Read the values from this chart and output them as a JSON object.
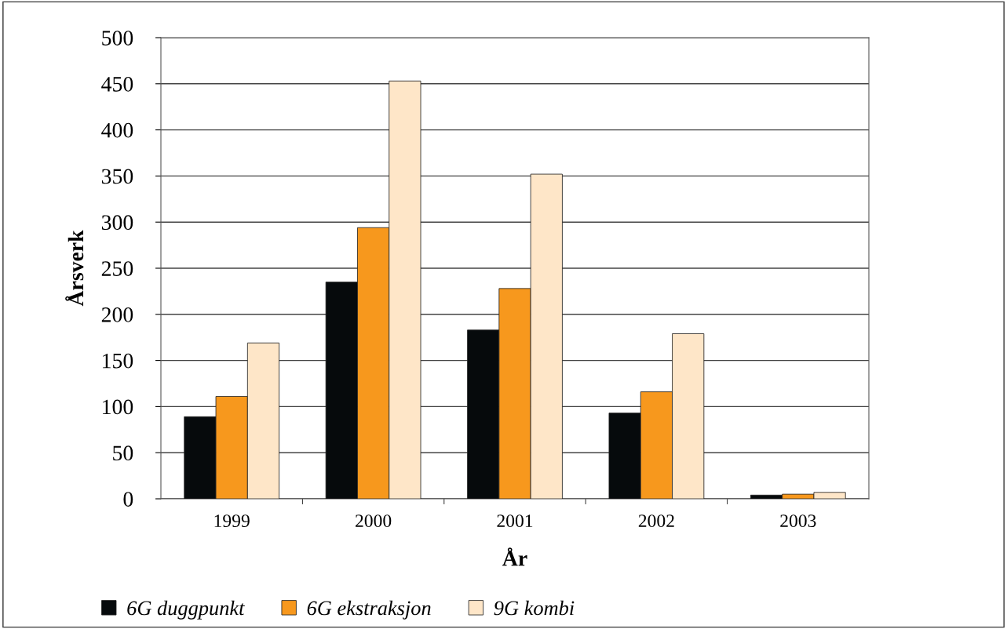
{
  "chart_data": {
    "type": "bar",
    "xlabel": "År",
    "ylabel": "Årsverk",
    "categories": [
      "1999",
      "2000",
      "2001",
      "2002",
      "2003"
    ],
    "series": [
      {
        "name": "6G duggpunkt",
        "color": "#060a0c",
        "values": [
          89,
          235,
          183,
          93,
          4
        ]
      },
      {
        "name": "6G ekstraksjon",
        "color": "#f7981d",
        "values": [
          111,
          294,
          228,
          116,
          5
        ]
      },
      {
        "name": "9G kombi",
        "color": "#fee6c8",
        "values": [
          169,
          453,
          352,
          179,
          7
        ]
      }
    ],
    "ylim": [
      0,
      500
    ],
    "yticks": [
      0,
      50,
      100,
      150,
      200,
      250,
      300,
      350,
      400,
      450,
      500
    ],
    "grid": "y",
    "legend": "bottom left"
  }
}
